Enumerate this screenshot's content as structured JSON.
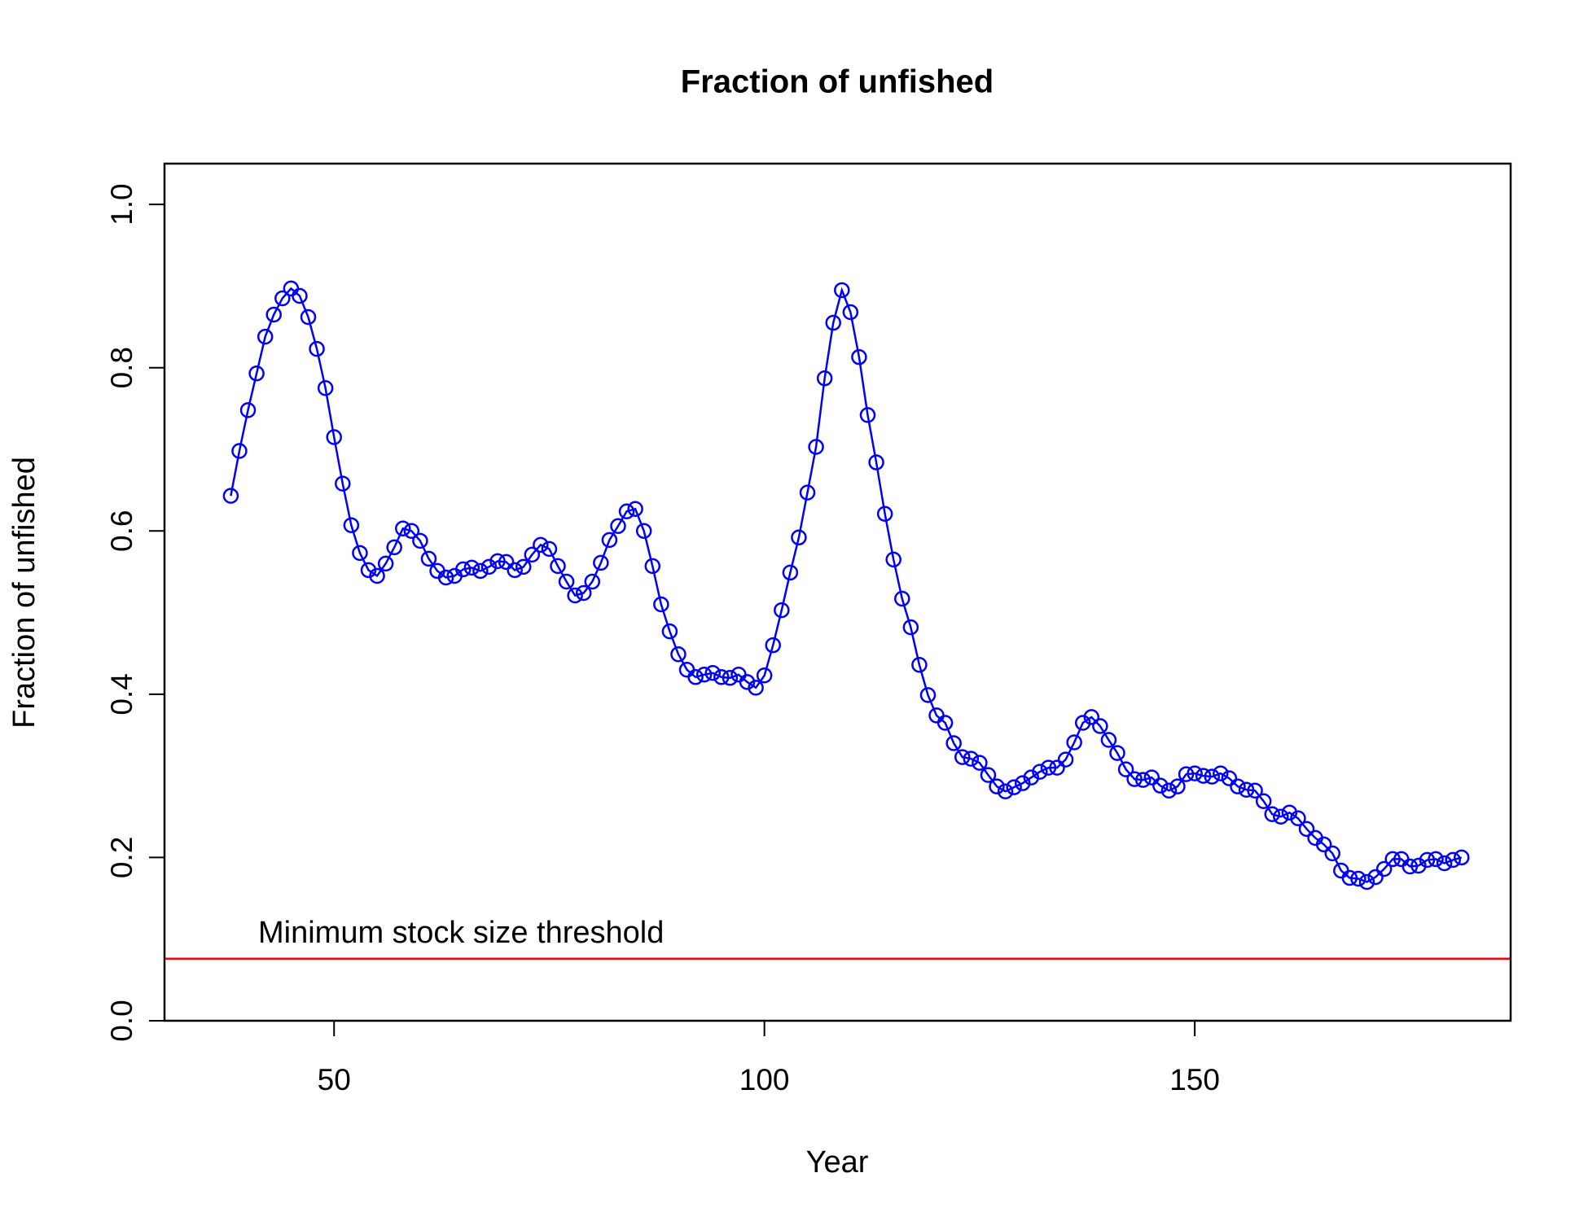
{
  "chart_data": {
    "type": "line",
    "title": "Fraction of unfished",
    "x_label": "Year",
    "y_label": "Fraction of unfished",
    "annotation": "Minimum stock size threshold",
    "threshold": 0.076,
    "threshold_color": "#ff0000",
    "x": [
      38,
      39,
      40,
      41,
      42,
      43,
      44,
      45,
      46,
      47,
      48,
      49,
      50,
      51,
      52,
      53,
      54,
      55,
      56,
      57,
      58,
      59,
      60,
      61,
      62,
      63,
      64,
      65,
      66,
      67,
      68,
      69,
      70,
      71,
      72,
      73,
      74,
      75,
      76,
      77,
      78,
      79,
      80,
      81,
      82,
      83,
      84,
      85,
      86,
      87,
      88,
      89,
      90,
      91,
      92,
      93,
      94,
      95,
      96,
      97,
      98,
      99,
      100,
      101,
      102,
      103,
      104,
      105,
      106,
      107,
      108,
      109,
      110,
      111,
      112,
      113,
      114,
      115,
      116,
      117,
      118,
      119,
      120,
      121,
      122,
      123,
      124,
      125,
      126,
      127,
      128,
      129,
      130,
      131,
      132,
      133,
      134,
      135,
      136,
      137,
      138,
      139,
      140,
      141,
      142,
      143,
      144,
      145,
      146,
      147,
      148,
      149,
      150,
      151,
      152,
      153,
      154,
      155,
      156,
      157,
      158,
      159,
      160,
      161,
      162,
      163,
      164,
      165,
      166,
      167,
      168,
      169,
      170,
      171,
      172,
      173,
      174,
      175,
      176,
      177,
      178,
      179,
      180,
      181
    ],
    "series": [
      {
        "name": "Fraction of unfished",
        "color": "#0000ff",
        "values": [
          0.643,
          0.698,
          0.748,
          0.793,
          0.838,
          0.865,
          0.885,
          0.897,
          0.888,
          0.862,
          0.823,
          0.775,
          0.715,
          0.658,
          0.607,
          0.573,
          0.552,
          0.545,
          0.56,
          0.58,
          0.603,
          0.6,
          0.588,
          0.566,
          0.551,
          0.543,
          0.545,
          0.553,
          0.555,
          0.551,
          0.556,
          0.563,
          0.562,
          0.552,
          0.556,
          0.571,
          0.583,
          0.578,
          0.557,
          0.538,
          0.521,
          0.524,
          0.538,
          0.561,
          0.589,
          0.606,
          0.624,
          0.627,
          0.6,
          0.557,
          0.51,
          0.477,
          0.449,
          0.43,
          0.421,
          0.424,
          0.426,
          0.421,
          0.42,
          0.424,
          0.415,
          0.408,
          0.423,
          0.46,
          0.503,
          0.549,
          0.592,
          0.647,
          0.703,
          0.787,
          0.855,
          0.895,
          0.868,
          0.813,
          0.742,
          0.684,
          0.621,
          0.565,
          0.517,
          0.482,
          0.436,
          0.399,
          0.374,
          0.365,
          0.34,
          0.323,
          0.321,
          0.316,
          0.301,
          0.287,
          0.281,
          0.286,
          0.291,
          0.298,
          0.305,
          0.31,
          0.31,
          0.32,
          0.341,
          0.365,
          0.372,
          0.361,
          0.344,
          0.328,
          0.308,
          0.296,
          0.295,
          0.298,
          0.288,
          0.282,
          0.287,
          0.302,
          0.303,
          0.3,
          0.299,
          0.303,
          0.297,
          0.287,
          0.283,
          0.282,
          0.269,
          0.253,
          0.25,
          0.255,
          0.248,
          0.235,
          0.224,
          0.216,
          0.205,
          0.184,
          0.175,
          0.174,
          0.17,
          0.176,
          0.186,
          0.198,
          0.198,
          0.189,
          0.19,
          0.197,
          0.198,
          0.193,
          0.197,
          0.2
        ]
      }
    ],
    "xlim": [
      30.3,
      186.7
    ],
    "ylim": [
      0,
      1.05
    ],
    "xticks": [
      50,
      100,
      150
    ],
    "yticks": [
      {
        "value": 0,
        "label": "0.0"
      },
      {
        "value": 0.2,
        "label": "0.2"
      },
      {
        "value": 0.4,
        "label": "0.4"
      },
      {
        "value": 0.6,
        "label": "0.6"
      },
      {
        "value": 0.8,
        "label": "0.8"
      },
      {
        "value": 1,
        "label": "1.0"
      }
    ],
    "markers": true,
    "grid": false
  }
}
